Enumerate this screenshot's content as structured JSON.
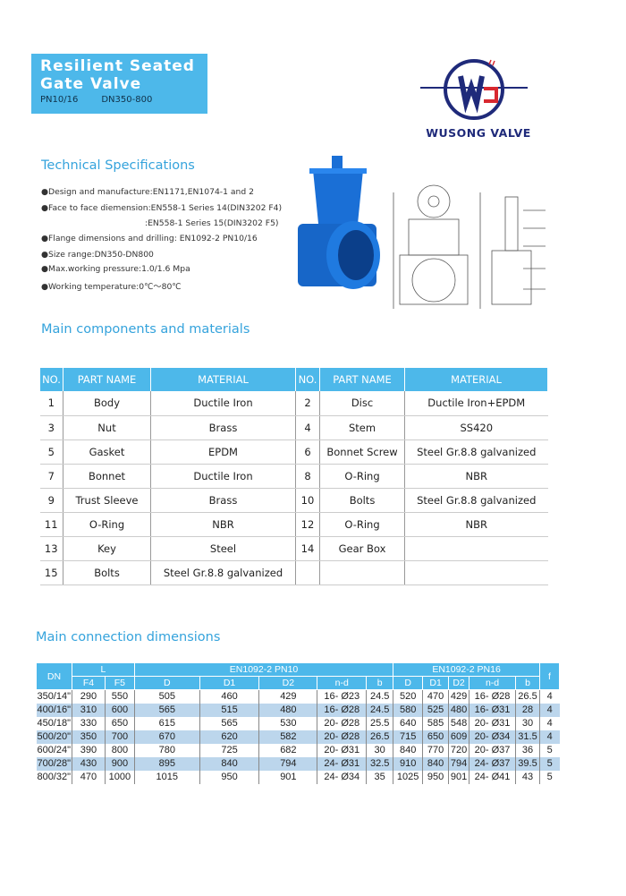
{
  "header": {
    "title_line1": "Resilient Seated",
    "title_line2": "Gate Valve",
    "pressure": "PN10/16",
    "size": "DN350-800"
  },
  "logo": {
    "brand": "WUSONG VALVE",
    "letters": "WS",
    "colors": {
      "navy": "#1f2a7a",
      "red": "#d8282f"
    }
  },
  "specs": {
    "heading": "Technical Specifications",
    "items": [
      "●Design and manufacture:EN1171,EN1074-1 and 2",
      "●Face to face diemension:EN558-1 Series 14(DIN3202 F4)",
      ":EN558-1 Series 15(DIN3202 F5)",
      "●Flange dimensions and drilling: EN1092-2 PN10/16",
      "●Size range:DN350-DN800",
      "●Max.working pressure:1.0/1.6 Mpa",
      "●Working temperature:0℃～80℃"
    ]
  },
  "components": {
    "heading": "Main components and materials",
    "headers": [
      "NO.",
      "PART NAME",
      "MATERIAL",
      "NO.",
      "PART NAME",
      "MATERIAL"
    ],
    "rows": [
      [
        "1",
        "Body",
        "Ductile Iron",
        "2",
        "Disc",
        "Ductile Iron+EPDM"
      ],
      [
        "3",
        "Nut",
        "Brass",
        "4",
        "Stem",
        "SS420"
      ],
      [
        "5",
        "Gasket",
        "EPDM",
        "6",
        "Bonnet Screw",
        "Steel Gr.8.8 galvanized"
      ],
      [
        "7",
        "Bonnet",
        "Ductile Iron",
        "8",
        "O-Ring",
        "NBR"
      ],
      [
        "9",
        "Trust Sleeve",
        "Brass",
        "10",
        "Bolts",
        "Steel Gr.8.8 galvanized"
      ],
      [
        "11",
        "O-Ring",
        "NBR",
        "12",
        "O-Ring",
        "NBR"
      ],
      [
        "13",
        "Key",
        "Steel",
        "14",
        "Gear Box",
        ""
      ],
      [
        "15",
        "Bolts",
        "Steel Gr.8.8 galvanized",
        "",
        "",
        ""
      ]
    ]
  },
  "dimensions": {
    "heading": "Main connection dimensions",
    "group_headers": {
      "dn": "DN",
      "l": "L",
      "pn10": "EN1092-2 PN10",
      "pn16": "EN1092-2 PN16",
      "f": "f"
    },
    "sub_headers": [
      "F4",
      "F5",
      "D",
      "D1",
      "D2",
      "n-d",
      "b",
      "D",
      "D1",
      "D2",
      "n-d",
      "b"
    ],
    "rows": [
      [
        "350/14\"",
        "290",
        "550",
        "505",
        "460",
        "429",
        "16- Ø23",
        "24.5",
        "520",
        "470",
        "429",
        "16- Ø28",
        "26.5",
        "4"
      ],
      [
        "400/16\"",
        "310",
        "600",
        "565",
        "515",
        "480",
        "16- Ø28",
        "24.5",
        "580",
        "525",
        "480",
        "16- Ø31",
        "28",
        "4"
      ],
      [
        "450/18\"",
        "330",
        "650",
        "615",
        "565",
        "530",
        "20- Ø28",
        "25.5",
        "640",
        "585",
        "548",
        "20- Ø31",
        "30",
        "4"
      ],
      [
        "500/20\"",
        "350",
        "700",
        "670",
        "620",
        "582",
        "20- Ø28",
        "26.5",
        "715",
        "650",
        "609",
        "20- Ø34",
        "31.5",
        "4"
      ],
      [
        "600/24\"",
        "390",
        "800",
        "780",
        "725",
        "682",
        "20- Ø31",
        "30",
        "840",
        "770",
        "720",
        "20- Ø37",
        "36",
        "5"
      ],
      [
        "700/28\"",
        "430",
        "900",
        "895",
        "840",
        "794",
        "24- Ø31",
        "32.5",
        "910",
        "840",
        "794",
        "24- Ø37",
        "39.5",
        "5"
      ],
      [
        "800/32\"",
        "470",
        "1000",
        "1015",
        "950",
        "901",
        "24- Ø34",
        "35",
        "1025",
        "950",
        "901",
        "24- Ø41",
        "43",
        "5"
      ]
    ]
  },
  "colors": {
    "accent": "#4db8ea",
    "heading": "#35a3dc",
    "row_alt": "#bcd6ec",
    "valve_blue": "#1a6fd6"
  }
}
